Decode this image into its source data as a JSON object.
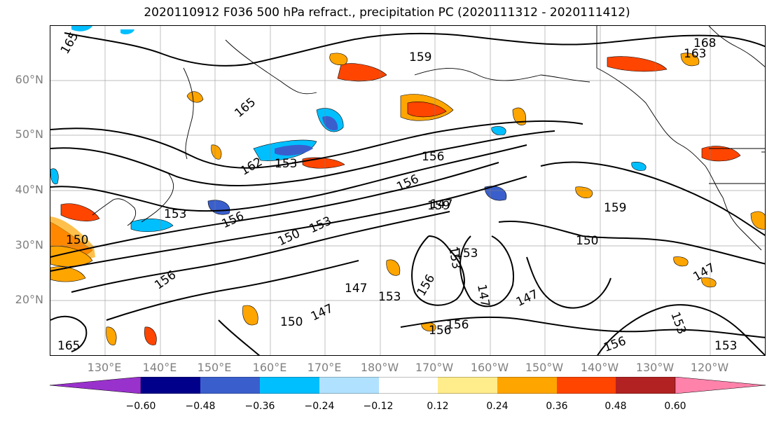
{
  "title": "2020110912 F036 500 hPa refract., precipitation PC (2020111312 - 2020111412)",
  "map": {
    "lat_labels": [
      "60°N",
      "50°N",
      "40°N",
      "30°N",
      "20°N"
    ],
    "lon_labels": [
      "130°E",
      "140°E",
      "150°E",
      "160°E",
      "170°E",
      "180°W",
      "170°W",
      "160°W",
      "150°W",
      "140°W",
      "130°W",
      "120°W"
    ],
    "contour_labels": [
      "165",
      "159",
      "168",
      "163",
      "165",
      "162",
      "153",
      "156",
      "156",
      "153",
      "156",
      "150",
      "153",
      "147",
      "159",
      "150",
      "156",
      "150",
      "147",
      "153",
      "156",
      "147",
      "150",
      "147",
      "153",
      "156",
      "156",
      "147",
      "153",
      "156",
      "165",
      "153",
      "153",
      "147",
      "159"
    ]
  },
  "colorbar": {
    "colors": [
      "#9932cc",
      "#00008b",
      "#3a5fcd",
      "#00bfff",
      "#b0e2ff",
      "#ffffff",
      "#ffec8b",
      "#ffa500",
      "#ff4500",
      "#b22222",
      "#ff82ab"
    ],
    "ticks": [
      "−0.60",
      "−0.48",
      "−0.36",
      "−0.24",
      "−0.12",
      "0.12",
      "0.24",
      "0.36",
      "0.48",
      "0.60"
    ]
  }
}
